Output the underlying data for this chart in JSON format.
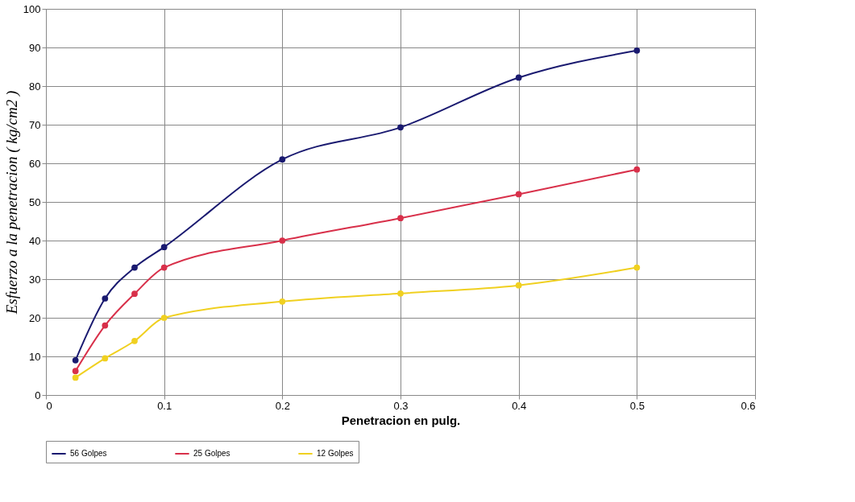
{
  "chart_data": {
    "type": "line",
    "xlabel": "Penetracion en pulg.",
    "ylabel": "Esfuerzo a la penetracion ( kg/cm2 )",
    "x": [
      0.025,
      0.05,
      0.075,
      0.1,
      0.2,
      0.3,
      0.4,
      0.5
    ],
    "series": [
      {
        "name": "56 Golpes",
        "color": "#1a1a70",
        "values": [
          9,
          25,
          33,
          38.3,
          61,
          69.3,
          82.2,
          89.2
        ]
      },
      {
        "name": "25 Golpes",
        "color": "#d8304a",
        "values": [
          6.2,
          18,
          26.2,
          33,
          40,
          45.8,
          52,
          58.4
        ]
      },
      {
        "name": "12 Golpes",
        "color": "#f0d020",
        "values": [
          4.5,
          9.5,
          14,
          20,
          24.2,
          26.3,
          28.4,
          33
        ]
      }
    ],
    "xlim": [
      0,
      0.6
    ],
    "xticks": [
      0,
      0.1,
      0.2,
      0.3,
      0.4,
      0.5,
      0.6
    ],
    "ylim": [
      0,
      100
    ],
    "yticks": [
      0,
      10,
      20,
      30,
      40,
      50,
      60,
      70,
      80,
      90,
      100
    ],
    "grid": true,
    "legend": "bottom",
    "marker": "circle",
    "line_style": "solid"
  }
}
